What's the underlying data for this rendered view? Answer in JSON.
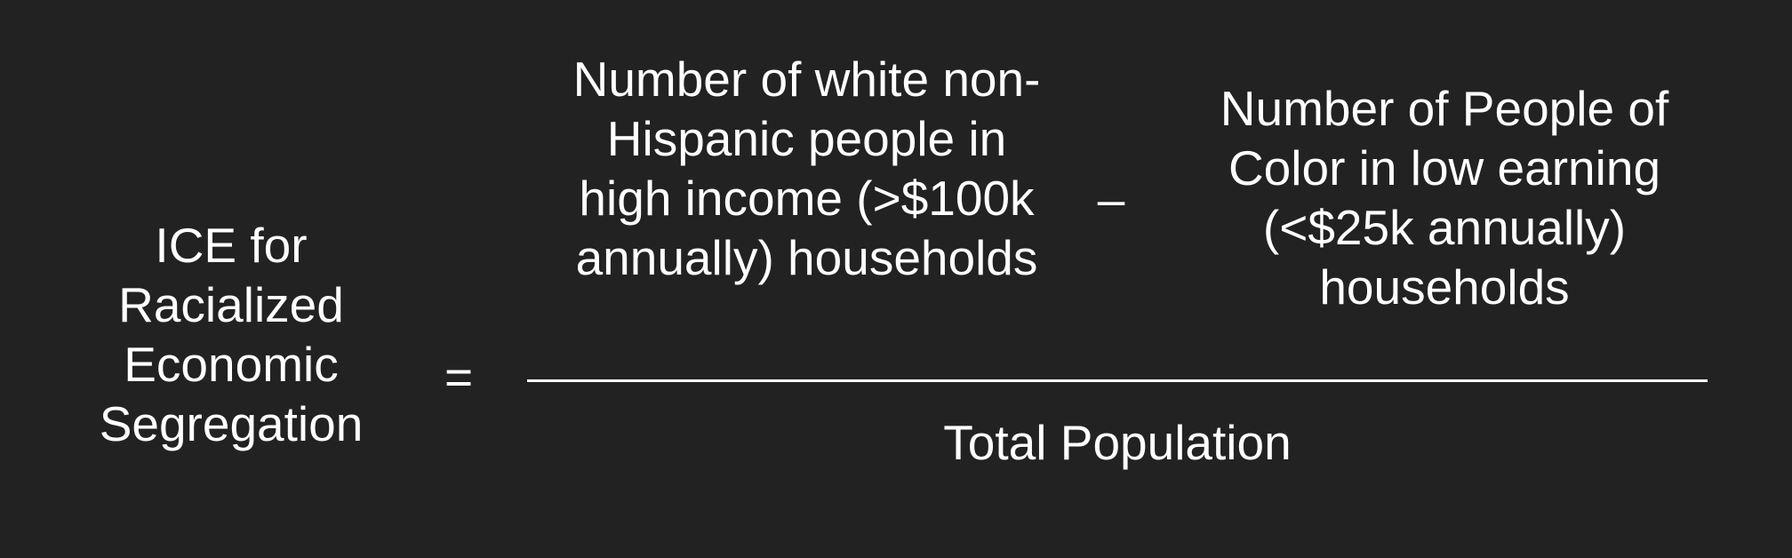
{
  "colors": {
    "background": "#222222",
    "text": "#ffffff",
    "line": "#ffffff"
  },
  "formula": {
    "lhs": "ICE for\nRacialized\nEconomic\nSegregation",
    "equals": "=",
    "numerator_term_1": "Number of white non-\nHispanic people in\nhigh income (>$100k\nannually) households",
    "operator": "–",
    "numerator_term_2": "Number of People of\nColor in low earning\n(<$25k annually)\nhouseholds",
    "denominator": "Total Population"
  }
}
